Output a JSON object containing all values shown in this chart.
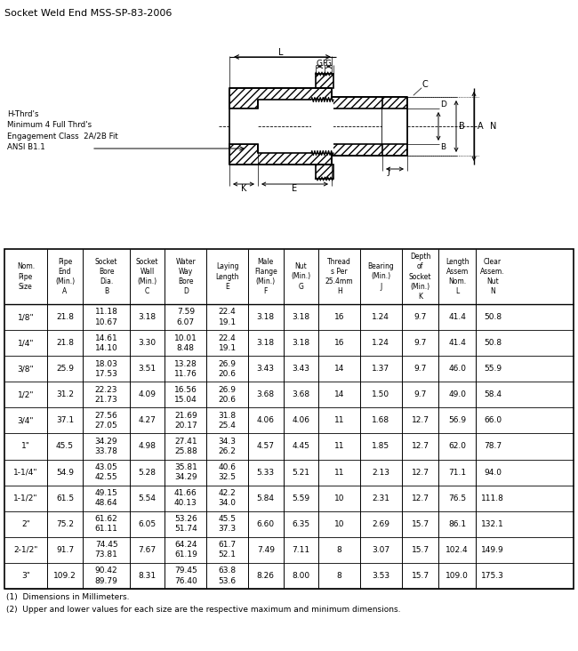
{
  "title": "Socket Weld End MSS-SP-83-2006",
  "diagram_note": "H-Thrd's\nMinimum 4 Full Thrd's\nEngagement Class  2A/2B Fit\nANSI B1.1",
  "rows": [
    [
      "1/8\"",
      "21.8",
      "11.18\n10.67",
      "3.18",
      "7.59\n6.07",
      "22.4\n19.1",
      "3.18",
      "3.18",
      "16",
      "1.24",
      "9.7",
      "41.4",
      "50.8"
    ],
    [
      "1/4\"",
      "21.8",
      "14.61\n14.10",
      "3.30",
      "10.01\n8.48",
      "22.4\n19.1",
      "3.18",
      "3.18",
      "16",
      "1.24",
      "9.7",
      "41.4",
      "50.8"
    ],
    [
      "3/8\"",
      "25.9",
      "18.03\n17.53",
      "3.51",
      "13.28\n11.76",
      "26.9\n20.6",
      "3.43",
      "3.43",
      "14",
      "1.37",
      "9.7",
      "46.0",
      "55.9"
    ],
    [
      "1/2\"",
      "31.2",
      "22.23\n21.73",
      "4.09",
      "16.56\n15.04",
      "26.9\n20.6",
      "3.68",
      "3.68",
      "14",
      "1.50",
      "9.7",
      "49.0",
      "58.4"
    ],
    [
      "3/4\"",
      "37.1",
      "27.56\n27.05",
      "4.27",
      "21.69\n20.17",
      "31.8\n25.4",
      "4.06",
      "4.06",
      "11",
      "1.68",
      "12.7",
      "56.9",
      "66.0"
    ],
    [
      "1\"",
      "45.5",
      "34.29\n33.78",
      "4.98",
      "27.41\n25.88",
      "34.3\n26.2",
      "4.57",
      "4.45",
      "11",
      "1.85",
      "12.7",
      "62.0",
      "78.7"
    ],
    [
      "1-1/4\"",
      "54.9",
      "43.05\n42.55",
      "5.28",
      "35.81\n34.29",
      "40.6\n32.5",
      "5.33",
      "5.21",
      "11",
      "2.13",
      "12.7",
      "71.1",
      "94.0"
    ],
    [
      "1-1/2\"",
      "61.5",
      "49.15\n48.64",
      "5.54",
      "41.66\n40.13",
      "42.2\n34.0",
      "5.84",
      "5.59",
      "10",
      "2.31",
      "12.7",
      "76.5",
      "111.8"
    ],
    [
      "2\"",
      "75.2",
      "61.62\n61.11",
      "6.05",
      "53.26\n51.74",
      "45.5\n37.3",
      "6.60",
      "6.35",
      "10",
      "2.69",
      "15.7",
      "86.1",
      "132.1"
    ],
    [
      "2-1/2\"",
      "91.7",
      "74.45\n73.81",
      "7.67",
      "64.24\n61.19",
      "61.7\n52.1",
      "7.49",
      "7.11",
      "8",
      "3.07",
      "15.7",
      "102.4",
      "149.9"
    ],
    [
      "3\"",
      "109.2",
      "90.42\n89.79",
      "8.31",
      "79.45\n76.40",
      "63.8\n53.6",
      "8.26",
      "8.00",
      "8",
      "3.53",
      "15.7",
      "109.0",
      "175.3"
    ]
  ],
  "footnotes": [
    "(1)  Dimensions in Millimeters.",
    "(2)  Upper and lower values for each size are the respective maximum and minimum dimensions."
  ],
  "col_ratios": [
    0.0745,
    0.0635,
    0.082,
    0.062,
    0.073,
    0.073,
    0.062,
    0.062,
    0.073,
    0.073,
    0.065,
    0.065,
    0.06
  ],
  "header_top": [
    "Nom.\nPipe\nSize",
    "Pipe\nEnd",
    "Socket\nBore\nDia.",
    "Socket\nWall",
    "Water\nWay\nBore",
    "Laying\nLength",
    "Male\nFlange",
    "Nut",
    "Thread\ns Per\n25.4mm",
    "Bearing",
    "Depth\nof\nSocket",
    "Length\nAssem\nNom.",
    "Clear\nAssem.\nNut"
  ],
  "header_bot": [
    "",
    "(Min.)\nA",
    "B",
    "(Min.)\nC",
    "D",
    "E",
    "(Min.)\nF",
    "(Min.)\nG",
    "H",
    "(Min.)\nJ",
    "(Min.)\nK",
    "L",
    "N"
  ]
}
